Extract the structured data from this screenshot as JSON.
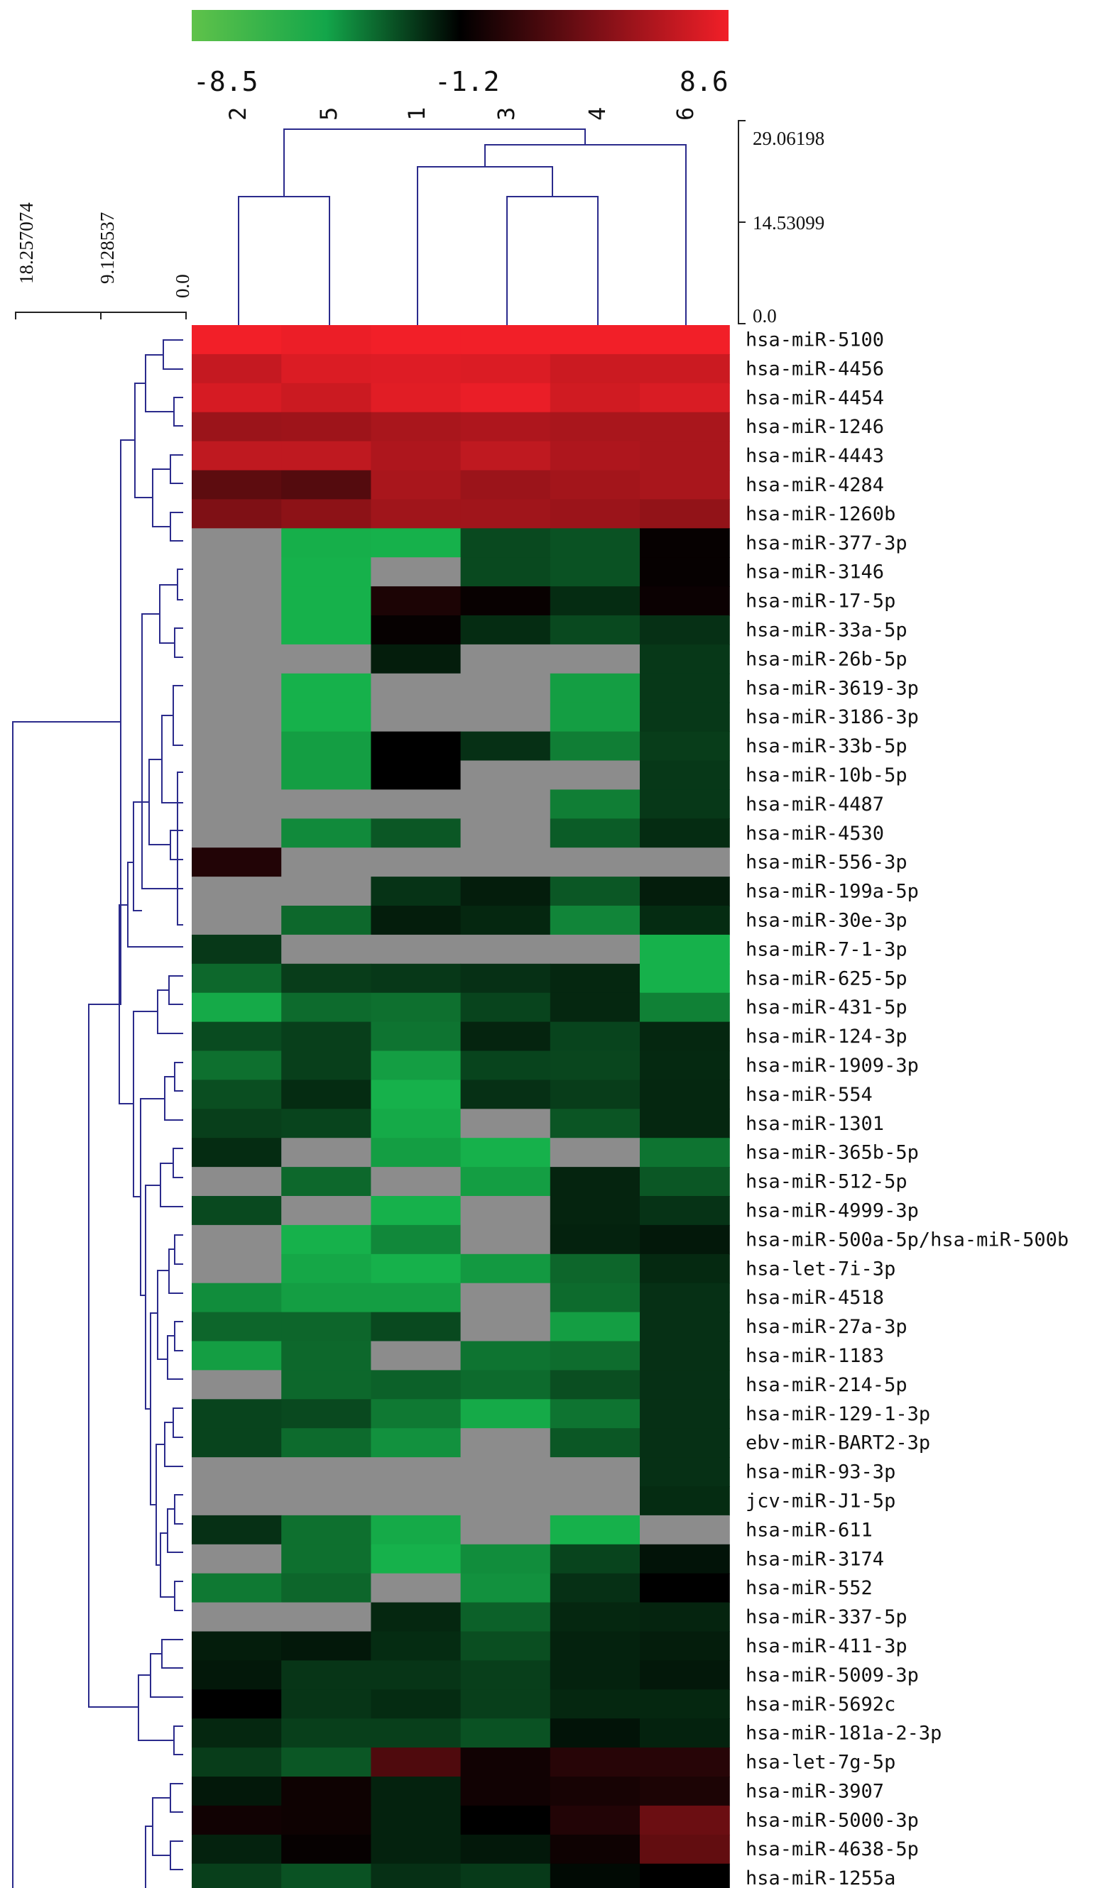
{
  "chart_data": {
    "type": "heatmap",
    "color_scale": {
      "min": -8.5,
      "mid": -1.2,
      "max": 8.6,
      "labels": [
        "-8.5",
        "-1.2",
        "8.6"
      ],
      "low_color": "#5fc24a",
      "mid_color": "#000000",
      "high_color": "#f21f28",
      "missing_color": "#8c8c8c"
    },
    "columns": [
      "2",
      "5",
      "1",
      "3",
      "4",
      "6"
    ],
    "col_dendrogram_ticks": [
      "29.06198",
      "14.53099",
      "0.0"
    ],
    "row_dendrogram_ticks": [
      "18.257074",
      "9.128537",
      "0.0"
    ],
    "rows": [
      "hsa-miR-5100",
      "hsa-miR-4456",
      "hsa-miR-4454",
      "hsa-miR-1246",
      "hsa-miR-4443",
      "hsa-miR-4284",
      "hsa-miR-1260b",
      "hsa-miR-377-3p",
      "hsa-miR-3146",
      "hsa-miR-17-5p",
      "hsa-miR-33a-5p",
      "hsa-miR-26b-5p",
      "hsa-miR-3619-3p",
      "hsa-miR-3186-3p",
      "hsa-miR-33b-5p",
      "hsa-miR-10b-5p",
      "hsa-miR-4487",
      "hsa-miR-4530",
      "hsa-miR-556-3p",
      "hsa-miR-199a-5p",
      "hsa-miR-30e-3p",
      "hsa-miR-7-1-3p",
      "hsa-miR-625-5p",
      "hsa-miR-431-5p",
      "hsa-miR-124-3p",
      "hsa-miR-1909-3p",
      "hsa-miR-554",
      "hsa-miR-1301",
      "hsa-miR-365b-5p",
      "hsa-miR-512-5p",
      "hsa-miR-4999-3p",
      "hsa-miR-500a-5p/hsa-miR-500b",
      "hsa-let-7i-3p",
      "hsa-miR-4518",
      "hsa-miR-27a-3p",
      "hsa-miR-1183",
      "hsa-miR-214-5p",
      "hsa-miR-129-1-3p",
      "ebv-miR-BART2-3p",
      "hsa-miR-93-3p",
      "jcv-miR-J1-5p",
      "hsa-miR-611",
      "hsa-miR-3174",
      "hsa-miR-552",
      "hsa-miR-337-5p",
      "hsa-miR-411-3p",
      "hsa-miR-5009-3p",
      "hsa-miR-5692c",
      "hsa-miR-181a-2-3p",
      "hsa-let-7g-5p",
      "hsa-miR-3907",
      "hsa-miR-5000-3p",
      "hsa-miR-4638-5p",
      "hsa-miR-1255a"
    ],
    "values": [
      [
        8.6,
        8.4,
        8.6,
        8.6,
        8.6,
        8.6
      ],
      [
        7.0,
        7.8,
        7.9,
        7.8,
        7.2,
        7.2
      ],
      [
        7.6,
        7.2,
        8.0,
        8.3,
        7.4,
        7.7
      ],
      [
        5.5,
        5.6,
        6.0,
        6.2,
        6.0,
        6.0
      ],
      [
        6.8,
        6.8,
        6.2,
        6.8,
        6.2,
        6.0
      ],
      [
        3.3,
        3.0,
        6.0,
        5.5,
        5.8,
        6.0
      ],
      [
        4.5,
        5.0,
        5.7,
        5.7,
        5.5,
        5.2
      ],
      [
        null,
        -7.2,
        -8.4,
        -3.0,
        -3.4,
        0.2
      ],
      [
        null,
        -8.4,
        null,
        -3.0,
        -3.4,
        0.2
      ],
      [
        null,
        -8.4,
        1.0,
        0.3,
        -1.8,
        0.4
      ],
      [
        null,
        -8.0,
        0.2,
        -1.8,
        -3.0,
        -2.0
      ],
      [
        null,
        null,
        -1.2,
        null,
        null,
        -2.3
      ],
      [
        null,
        -8.5,
        null,
        null,
        -6.5,
        -2.3
      ],
      [
        null,
        -7.4,
        null,
        null,
        -6.5,
        -2.3
      ],
      [
        null,
        -6.5,
        0.0,
        -2.0,
        -5.2,
        -2.5
      ],
      [
        null,
        -6.5,
        0.0,
        null,
        null,
        -2.3
      ],
      [
        null,
        null,
        null,
        null,
        -5.2,
        -2.3
      ],
      [
        null,
        -5.7,
        -3.6,
        null,
        -3.8,
        -1.8
      ],
      [
        1.2,
        null,
        null,
        null,
        null,
        null
      ],
      [
        null,
        null,
        -2.1,
        -1.2,
        -3.6,
        -1.2
      ],
      [
        null,
        -4.3,
        -1.2,
        -1.6,
        -5.5,
        -1.8
      ],
      [
        -2.3,
        null,
        null,
        null,
        null,
        -8.5
      ],
      [
        -4.3,
        -2.5,
        -2.3,
        -2.0,
        -1.6,
        -7.6
      ],
      [
        -7.0,
        -4.4,
        -4.6,
        -2.8,
        -1.6,
        -5.3
      ],
      [
        -3.1,
        -2.6,
        -4.8,
        -1.5,
        -2.8,
        -1.6
      ],
      [
        -4.6,
        -2.6,
        -6.5,
        -2.8,
        -2.9,
        -1.7
      ],
      [
        -3.2,
        -1.8,
        -8.0,
        -2.0,
        -2.5,
        -1.6
      ],
      [
        -2.6,
        -2.8,
        -7.0,
        null,
        -3.5,
        -1.6
      ],
      [
        -1.8,
        null,
        -6.5,
        -8.0,
        null,
        -4.8
      ],
      [
        null,
        -4.3,
        null,
        -6.5,
        -1.5,
        -3.6
      ],
      [
        -3.0,
        null,
        -7.8,
        null,
        -1.5,
        -2.1
      ],
      [
        null,
        -7.4,
        -5.6,
        null,
        -1.4,
        -1.0
      ],
      [
        null,
        -6.9,
        -7.3,
        -6.3,
        -4.2,
        -1.7
      ],
      [
        -5.8,
        -6.5,
        -6.5,
        null,
        -4.4,
        -2.0
      ],
      [
        -4.2,
        -4.2,
        -3.0,
        null,
        -6.5,
        -2.0
      ],
      [
        -6.5,
        -4.3,
        null,
        -4.8,
        -4.5,
        -2.0
      ],
      [
        null,
        -4.3,
        -4.0,
        -4.4,
        -3.2,
        -2.0
      ],
      [
        -2.8,
        -3.0,
        -5.0,
        -7.0,
        -4.8,
        -2.0
      ],
      [
        -2.8,
        -4.4,
        -6.0,
        null,
        -3.6,
        -2.0
      ],
      [
        null,
        null,
        null,
        null,
        null,
        -2.0
      ],
      [
        null,
        null,
        null,
        null,
        null,
        -1.8
      ],
      [
        -2.0,
        -4.6,
        -7.0,
        null,
        -7.8,
        null
      ],
      [
        null,
        -4.6,
        -7.4,
        -5.8,
        -2.8,
        -0.8
      ],
      [
        -5.0,
        -4.2,
        null,
        -6.0,
        -2.0,
        0.0
      ],
      [
        null,
        null,
        -1.6,
        -4.0,
        -1.6,
        -1.5
      ],
      [
        -1.2,
        -1.0,
        -1.8,
        -3.2,
        -1.4,
        -1.2
      ],
      [
        -1.0,
        -2.2,
        -2.2,
        -2.6,
        -1.4,
        -1.0
      ],
      [
        0.0,
        -2.2,
        -1.8,
        -2.6,
        -1.6,
        -1.6
      ],
      [
        -1.6,
        -2.6,
        -2.6,
        -3.4,
        -0.8,
        -1.4
      ],
      [
        -2.5,
        -3.6,
        2.8,
        0.6,
        1.4,
        1.4
      ],
      [
        -1.0,
        0.5,
        -1.4,
        0.6,
        0.8,
        1.0
      ],
      [
        0.6,
        0.5,
        -1.4,
        0.0,
        1.2,
        3.8
      ],
      [
        -1.4,
        0.2,
        -1.4,
        -1.0,
        0.5,
        3.5
      ],
      [
        -2.6,
        -3.4,
        -2.0,
        -2.4,
        -0.4,
        0.0
      ]
    ]
  }
}
